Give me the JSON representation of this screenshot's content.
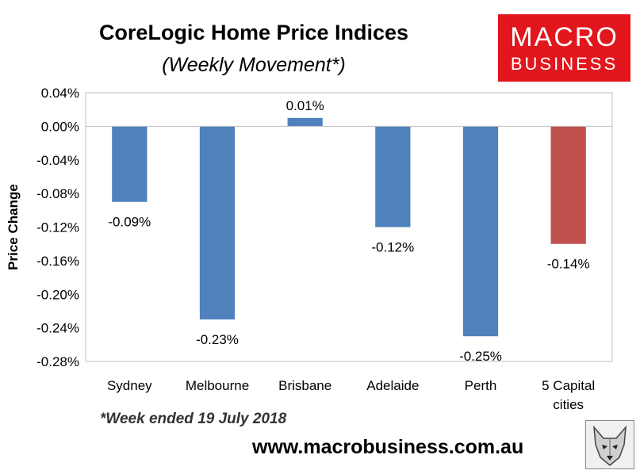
{
  "title": "CoreLogic Home Price Indices",
  "subtitle": "(Weekly Movement*)",
  "logo": {
    "line1": "MACRO",
    "line2": "BUSINESS",
    "bg_color": "#e2161d"
  },
  "footnote": "*Week ended 19 July 2018",
  "website": "www.macrobusiness.com.au",
  "chart_data": {
    "type": "bar",
    "categories": [
      "Sydney",
      "Melbourne",
      "Brisbane",
      "Adelaide",
      "Perth",
      "5 Capital cities"
    ],
    "category_lines": [
      [
        "Sydney"
      ],
      [
        "Melbourne"
      ],
      [
        "Brisbane"
      ],
      [
        "Adelaide"
      ],
      [
        "Perth"
      ],
      [
        "5 Capital",
        "cities"
      ]
    ],
    "values": [
      -0.09,
      -0.23,
      0.01,
      -0.12,
      -0.25,
      -0.14
    ],
    "data_labels": [
      "-0.09%",
      "-0.23%",
      "0.01%",
      "-0.12%",
      "-0.25%",
      "-0.14%"
    ],
    "colors": [
      "#4f81bd",
      "#4f81bd",
      "#4f81bd",
      "#4f81bd",
      "#4f81bd",
      "#c0504d"
    ],
    "ylabel": "Price Change",
    "ylim": [
      -0.28,
      0.04
    ],
    "yticks": [
      0.04,
      0.0,
      -0.04,
      -0.08,
      -0.12,
      -0.16,
      -0.2,
      -0.24,
      -0.28
    ],
    "ytick_labels": [
      "0.04%",
      "0.00%",
      "-0.04%",
      "-0.08%",
      "-0.12%",
      "-0.16%",
      "-0.20%",
      "-0.24%",
      "-0.28%"
    ],
    "grid": false
  }
}
